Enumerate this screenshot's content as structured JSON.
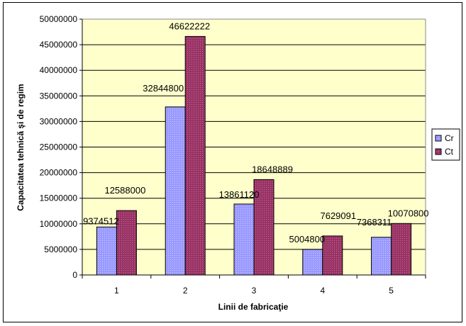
{
  "chart_data": {
    "type": "bar",
    "title": "",
    "xlabel": "Linii de fabricaţie",
    "ylabel": "Capacitatea tehnică şi de regim",
    "categories": [
      "1",
      "2",
      "3",
      "4",
      "5"
    ],
    "series": [
      {
        "name": "Cr",
        "values": [
          9374512,
          32844800,
          13861120,
          5004800,
          7368311
        ],
        "color": "#9999ff"
      },
      {
        "name": "Ct",
        "values": [
          12588000,
          46622222,
          18648889,
          7629091,
          10070800
        ],
        "color": "#993366"
      }
    ],
    "ylim": [
      0,
      50000000
    ],
    "yticks": [
      0,
      5000000,
      10000000,
      15000000,
      20000000,
      25000000,
      30000000,
      35000000,
      40000000,
      45000000,
      50000000
    ],
    "grid": true,
    "legend": "right",
    "plot_background": "#ffffcc"
  }
}
